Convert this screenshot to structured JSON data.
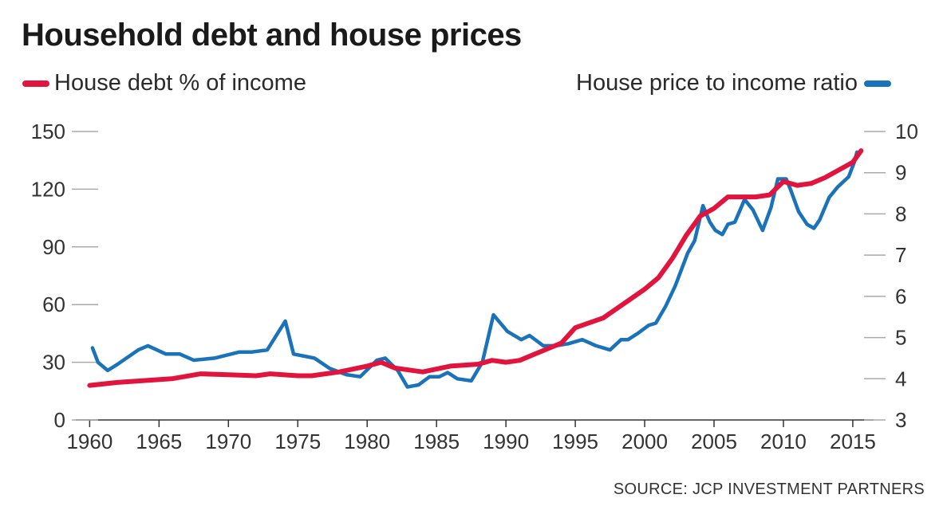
{
  "chart_data": {
    "type": "line",
    "title": "Household debt and house prices",
    "source": "SOURCE: JCP INVESTMENT PARTNERS",
    "x_ticks": [
      1960,
      1965,
      1970,
      1975,
      1980,
      1985,
      1990,
      1995,
      2000,
      2005,
      2010,
      2015
    ],
    "xlim": [
      1959,
      2016.5
    ],
    "left_axis": {
      "ylim": [
        0,
        150
      ],
      "ticks": [
        0,
        30,
        60,
        90,
        120,
        150
      ]
    },
    "right_axis": {
      "ylim": [
        3,
        10
      ],
      "ticks": [
        3,
        4,
        5,
        6,
        7,
        8,
        9,
        10
      ]
    },
    "grid": false,
    "series": [
      {
        "name": "House debt % of income",
        "axis": "left",
        "color": "#e0143c",
        "x": [
          1960,
          1962,
          1964,
          1966,
          1968,
          1970,
          1972,
          1973,
          1975,
          1976,
          1978,
          1980,
          1981,
          1982,
          1984,
          1986,
          1988,
          1989,
          1990,
          1991,
          1992,
          1994,
          1995,
          1997,
          1999,
          2000,
          2001,
          2002,
          2003,
          2004,
          2005,
          2006,
          2007,
          2008,
          2009,
          2010,
          2011,
          2012,
          2013,
          2014,
          2015,
          2015.6
        ],
        "y": [
          18,
          19.5,
          20.5,
          21.5,
          24,
          23.5,
          23,
          24,
          23,
          23,
          25,
          28,
          30,
          27,
          25,
          28,
          29,
          31,
          30,
          31,
          34,
          40,
          48,
          53,
          63,
          68,
          74,
          84,
          96,
          106,
          110,
          116,
          116,
          116,
          117,
          124,
          122,
          123,
          126,
          130,
          134,
          140
        ]
      },
      {
        "name": "House price to income ratio",
        "axis": "right",
        "color": "#1a73ba",
        "x": [
          1960.2,
          1960.6,
          1961.3,
          1962,
          1963.5,
          1964.2,
          1965.5,
          1966.5,
          1967.5,
          1969,
          1970.8,
          1971.7,
          1972.8,
          1974.1,
          1974.7,
          1976.2,
          1977.3,
          1978.5,
          1979.5,
          1980.7,
          1981.3,
          1982.2,
          1982.9,
          1983.7,
          1984.5,
          1985.2,
          1985.8,
          1986.5,
          1987.5,
          1988.3,
          1989.1,
          1990.1,
          1991.1,
          1991.7,
          1992.7,
          1993.6,
          1994.5,
          1995.5,
          1996.5,
          1997.5,
          1998.3,
          1998.8,
          1999.5,
          2000.3,
          2000.8,
          2001.5,
          2002.2,
          2003.1,
          2003.6,
          2004.2,
          2004.7,
          2005.1,
          2005.6,
          2006,
          2006.5,
          2007.2,
          2007.8,
          2008.5,
          2009.1,
          2009.6,
          2010.2,
          2010.5,
          2011.1,
          2011.7,
          2012.2,
          2012.6,
          2013.3,
          2013.9,
          2014.7,
          2015.1,
          2015.3
        ],
        "y": [
          4.75,
          4.4,
          4.2,
          4.35,
          4.7,
          4.8,
          4.6,
          4.6,
          4.45,
          4.5,
          4.65,
          4.65,
          4.7,
          5.4,
          4.6,
          4.5,
          4.25,
          4.1,
          4.05,
          4.45,
          4.5,
          4.2,
          3.8,
          3.85,
          4.05,
          4.05,
          4.15,
          4.0,
          3.95,
          4.4,
          5.55,
          5.15,
          4.95,
          5.05,
          4.8,
          4.8,
          4.85,
          4.95,
          4.8,
          4.7,
          4.95,
          4.95,
          5.1,
          5.3,
          5.35,
          5.75,
          6.25,
          7.05,
          7.35,
          8.2,
          7.8,
          7.6,
          7.5,
          7.75,
          7.8,
          8.35,
          8.1,
          7.6,
          8.15,
          8.85,
          8.85,
          8.6,
          8.05,
          7.75,
          7.65,
          7.85,
          8.4,
          8.65,
          8.9,
          9.25,
          9.5
        ]
      }
    ]
  }
}
